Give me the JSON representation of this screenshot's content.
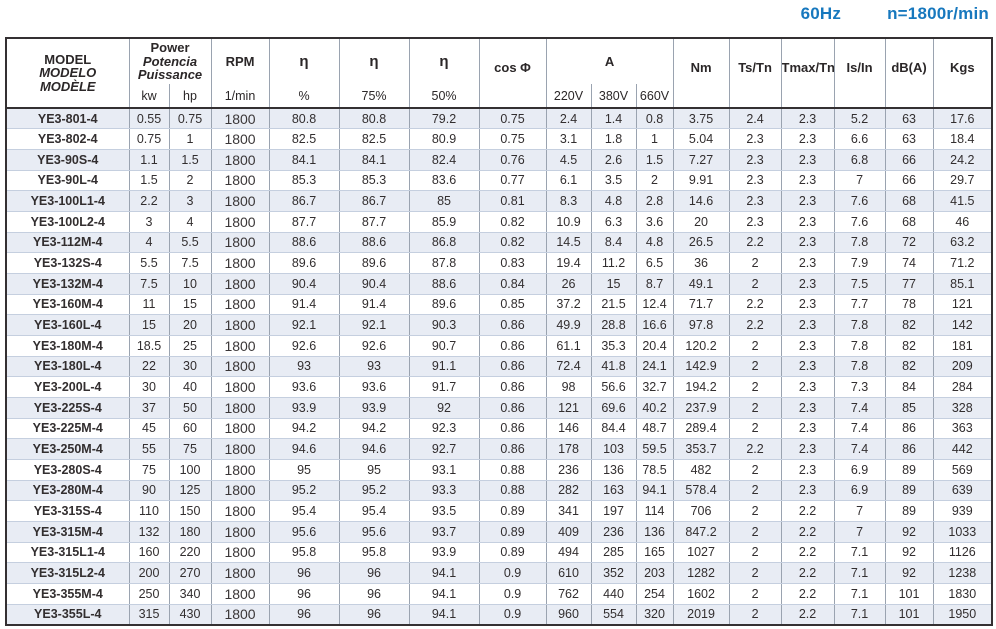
{
  "page": {
    "frequency_label": "60Hz",
    "speed_label": "n=1800r/min",
    "accent_blue": "#1778be",
    "stripe_color": "#e8ecf4"
  },
  "table": {
    "header": {
      "model": [
        "MODEL",
        "MODELO",
        "MODÈLE"
      ],
      "power": [
        "Power",
        "Potencia",
        "Puissance"
      ],
      "power_sub": [
        "kw",
        "hp"
      ],
      "rpm": "RPM",
      "rpm_sub": "1/min",
      "eta": "η",
      "eta_sub": "%",
      "eta75": "η",
      "eta75_sub": "75%",
      "eta50": "η",
      "eta50_sub": "50%",
      "cos_phi": "cos Φ",
      "current": "A",
      "current_sub": [
        "220V",
        "380V",
        "660V"
      ],
      "nm": "Nm",
      "ts_tn": "Ts/Tn",
      "tmax_tn": "Tmax/Tn",
      "is_in": "Is/In",
      "db": "dB(A)",
      "kgs": "Kgs"
    },
    "rows": [
      [
        "YE3-801-4",
        "0.55",
        "0.75",
        "1800",
        "80.8",
        "80.8",
        "79.2",
        "0.75",
        "2.4",
        "1.4",
        "0.8",
        "3.75",
        "2.4",
        "2.3",
        "5.2",
        "63",
        "17.6"
      ],
      [
        "YE3-802-4",
        "0.75",
        "1",
        "1800",
        "82.5",
        "82.5",
        "80.9",
        "0.75",
        "3.1",
        "1.8",
        "1",
        "5.04",
        "2.3",
        "2.3",
        "6.6",
        "63",
        "18.4"
      ],
      [
        "YE3-90S-4",
        "1.1",
        "1.5",
        "1800",
        "84.1",
        "84.1",
        "82.4",
        "0.76",
        "4.5",
        "2.6",
        "1.5",
        "7.27",
        "2.3",
        "2.3",
        "6.8",
        "66",
        "24.2"
      ],
      [
        "YE3-90L-4",
        "1.5",
        "2",
        "1800",
        "85.3",
        "85.3",
        "83.6",
        "0.77",
        "6.1",
        "3.5",
        "2",
        "9.91",
        "2.3",
        "2.3",
        "7",
        "66",
        "29.7"
      ],
      [
        "YE3-100L1-4",
        "2.2",
        "3",
        "1800",
        "86.7",
        "86.7",
        "85",
        "0.81",
        "8.3",
        "4.8",
        "2.8",
        "14.6",
        "2.3",
        "2.3",
        "7.6",
        "68",
        "41.5"
      ],
      [
        "YE3-100L2-4",
        "3",
        "4",
        "1800",
        "87.7",
        "87.7",
        "85.9",
        "0.82",
        "10.9",
        "6.3",
        "3.6",
        "20",
        "2.3",
        "2.3",
        "7.6",
        "68",
        "46"
      ],
      [
        "YE3-112M-4",
        "4",
        "5.5",
        "1800",
        "88.6",
        "88.6",
        "86.8",
        "0.82",
        "14.5",
        "8.4",
        "4.8",
        "26.5",
        "2.2",
        "2.3",
        "7.8",
        "72",
        "63.2"
      ],
      [
        "YE3-132S-4",
        "5.5",
        "7.5",
        "1800",
        "89.6",
        "89.6",
        "87.8",
        "0.83",
        "19.4",
        "11.2",
        "6.5",
        "36",
        "2",
        "2.3",
        "7.9",
        "74",
        "71.2"
      ],
      [
        "YE3-132M-4",
        "7.5",
        "10",
        "1800",
        "90.4",
        "90.4",
        "88.6",
        "0.84",
        "26",
        "15",
        "8.7",
        "49.1",
        "2",
        "2.3",
        "7.5",
        "77",
        "85.1"
      ],
      [
        "YE3-160M-4",
        "11",
        "15",
        "1800",
        "91.4",
        "91.4",
        "89.6",
        "0.85",
        "37.2",
        "21.5",
        "12.4",
        "71.7",
        "2.2",
        "2.3",
        "7.7",
        "78",
        "121"
      ],
      [
        "YE3-160L-4",
        "15",
        "20",
        "1800",
        "92.1",
        "92.1",
        "90.3",
        "0.86",
        "49.9",
        "28.8",
        "16.6",
        "97.8",
        "2.2",
        "2.3",
        "7.8",
        "82",
        "142"
      ],
      [
        "YE3-180M-4",
        "18.5",
        "25",
        "1800",
        "92.6",
        "92.6",
        "90.7",
        "0.86",
        "61.1",
        "35.3",
        "20.4",
        "120.2",
        "2",
        "2.3",
        "7.8",
        "82",
        "181"
      ],
      [
        "YE3-180L-4",
        "22",
        "30",
        "1800",
        "93",
        "93",
        "91.1",
        "0.86",
        "72.4",
        "41.8",
        "24.1",
        "142.9",
        "2",
        "2.3",
        "7.8",
        "82",
        "209"
      ],
      [
        "YE3-200L-4",
        "30",
        "40",
        "1800",
        "93.6",
        "93.6",
        "91.7",
        "0.86",
        "98",
        "56.6",
        "32.7",
        "194.2",
        "2",
        "2.3",
        "7.3",
        "84",
        "284"
      ],
      [
        "YE3-225S-4",
        "37",
        "50",
        "1800",
        "93.9",
        "93.9",
        "92",
        "0.86",
        "121",
        "69.6",
        "40.2",
        "237.9",
        "2",
        "2.3",
        "7.4",
        "85",
        "328"
      ],
      [
        "YE3-225M-4",
        "45",
        "60",
        "1800",
        "94.2",
        "94.2",
        "92.3",
        "0.86",
        "146",
        "84.4",
        "48.7",
        "289.4",
        "2",
        "2.3",
        "7.4",
        "86",
        "363"
      ],
      [
        "YE3-250M-4",
        "55",
        "75",
        "1800",
        "94.6",
        "94.6",
        "92.7",
        "0.86",
        "178",
        "103",
        "59.5",
        "353.7",
        "2.2",
        "2.3",
        "7.4",
        "86",
        "442"
      ],
      [
        "YE3-280S-4",
        "75",
        "100",
        "1800",
        "95",
        "95",
        "93.1",
        "0.88",
        "236",
        "136",
        "78.5",
        "482",
        "2",
        "2.3",
        "6.9",
        "89",
        "569"
      ],
      [
        "YE3-280M-4",
        "90",
        "125",
        "1800",
        "95.2",
        "95.2",
        "93.3",
        "0.88",
        "282",
        "163",
        "94.1",
        "578.4",
        "2",
        "2.3",
        "6.9",
        "89",
        "639"
      ],
      [
        "YE3-315S-4",
        "110",
        "150",
        "1800",
        "95.4",
        "95.4",
        "93.5",
        "0.89",
        "341",
        "197",
        "114",
        "706",
        "2",
        "2.2",
        "7",
        "89",
        "939"
      ],
      [
        "YE3-315M-4",
        "132",
        "180",
        "1800",
        "95.6",
        "95.6",
        "93.7",
        "0.89",
        "409",
        "236",
        "136",
        "847.2",
        "2",
        "2.2",
        "7",
        "92",
        "1033"
      ],
      [
        "YE3-315L1-4",
        "160",
        "220",
        "1800",
        "95.8",
        "95.8",
        "93.9",
        "0.89",
        "494",
        "285",
        "165",
        "1027",
        "2",
        "2.2",
        "7.1",
        "92",
        "1126"
      ],
      [
        "YE3-315L2-4",
        "200",
        "270",
        "1800",
        "96",
        "96",
        "94.1",
        "0.9",
        "610",
        "352",
        "203",
        "1282",
        "2",
        "2.2",
        "7.1",
        "92",
        "1238"
      ],
      [
        "YE3-355M-4",
        "250",
        "340",
        "1800",
        "96",
        "96",
        "94.1",
        "0.9",
        "762",
        "440",
        "254",
        "1602",
        "2",
        "2.2",
        "7.1",
        "101",
        "1830"
      ],
      [
        "YE3-355L-4",
        "315",
        "430",
        "1800",
        "96",
        "96",
        "94.1",
        "0.9",
        "960",
        "554",
        "320",
        "2019",
        "2",
        "2.2",
        "7.1",
        "101",
        "1950"
      ]
    ]
  }
}
